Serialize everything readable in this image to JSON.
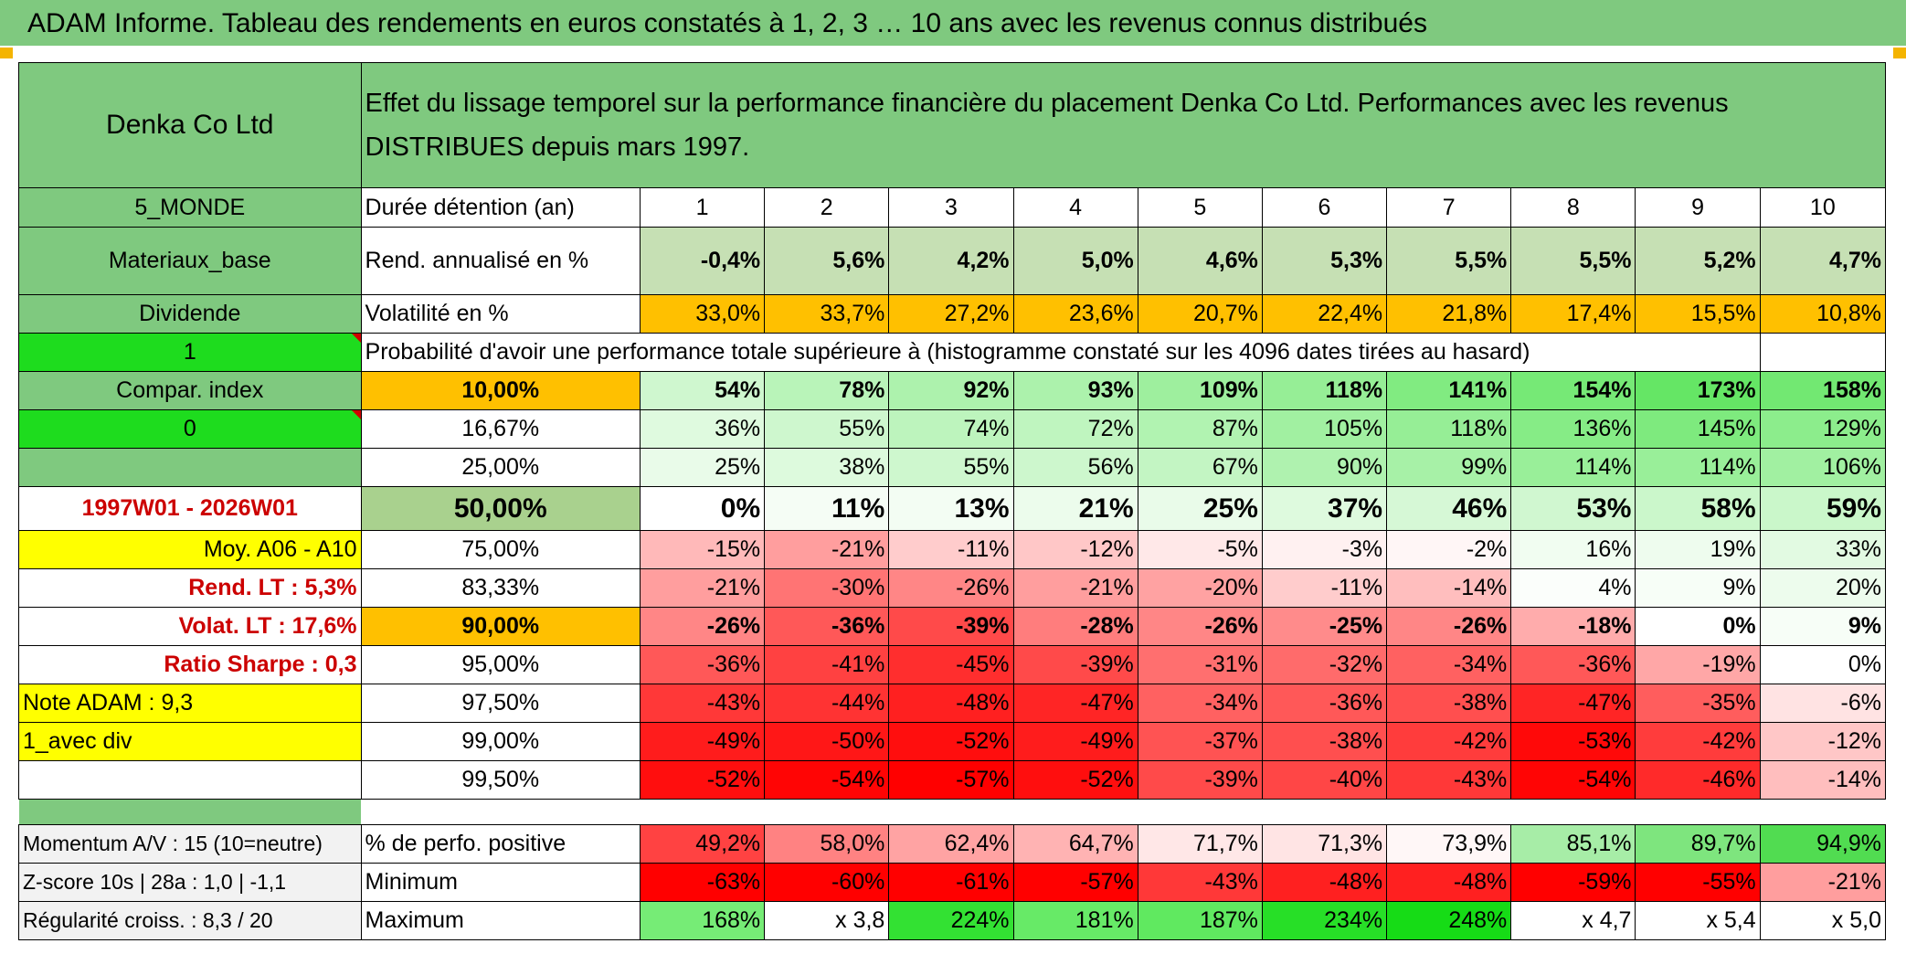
{
  "title": "ADAM Informe. Tableau des rendements en euros constatés à 1, 2, 3 … 10 ans avec les revenus connus distribués",
  "header": {
    "name": "Denka Co Ltd",
    "description": "Effet du lissage temporel sur la performance financière du placement Denka Co Ltd. Performances avec les revenus DISTRIBUES depuis mars 1997."
  },
  "side": {
    "region": "5_MONDE",
    "sector": "Materiaux_base",
    "income_type": "Dividende",
    "value1": "1",
    "compar_label": "Compar. index",
    "value0": "0",
    "period": "1997W01 - 2026W01",
    "moy": "Moy. A06 - A10",
    "rend_lt": "Rend. LT :   5,3%",
    "volat_lt": "Volat. LT :   17,6%",
    "sharpe": "Ratio Sharpe :    0,3",
    "note": "Note ADAM : 9,3",
    "avec_div": "1_avec div",
    "momentum": "Momentum A/V : 15 (10=neutre)",
    "zscore": "Z-score 10s | 28a : 1,0 | -1,1",
    "regularite": "Régularité croiss. : 8,3 / 20"
  },
  "duration_label": "Durée détention (an)",
  "durations": [
    "1",
    "2",
    "3",
    "4",
    "5",
    "6",
    "7",
    "8",
    "9",
    "10"
  ],
  "rend_label": "Rend. annualisé en %",
  "rend": [
    "-0,4%",
    "5,6%",
    "4,2%",
    "5,0%",
    "4,6%",
    "5,3%",
    "5,5%",
    "5,5%",
    "5,2%",
    "4,7%"
  ],
  "vol_label": "Volatilité en %",
  "vol": [
    "33,0%",
    "33,7%",
    "27,2%",
    "23,6%",
    "20,7%",
    "22,4%",
    "21,8%",
    "17,4%",
    "15,5%",
    "10,8%"
  ],
  "prob_label": "Probabilité d'avoir une performance totale supérieure à (histogramme constaté sur les 4096 dates tirées au hasard)",
  "quantiles": [
    {
      "p": "10,00%",
      "v": [
        "54%",
        "78%",
        "92%",
        "93%",
        "109%",
        "118%",
        "141%",
        "154%",
        "173%",
        "158%"
      ]
    },
    {
      "p": "16,67%",
      "v": [
        "36%",
        "55%",
        "74%",
        "72%",
        "87%",
        "105%",
        "118%",
        "136%",
        "145%",
        "129%"
      ]
    },
    {
      "p": "25,00%",
      "v": [
        "25%",
        "38%",
        "55%",
        "56%",
        "67%",
        "90%",
        "99%",
        "114%",
        "114%",
        "106%"
      ]
    },
    {
      "p": "50,00%",
      "v": [
        "0%",
        "11%",
        "13%",
        "21%",
        "25%",
        "37%",
        "46%",
        "53%",
        "58%",
        "59%"
      ]
    },
    {
      "p": "75,00%",
      "v": [
        "-15%",
        "-21%",
        "-11%",
        "-12%",
        "-5%",
        "-3%",
        "-2%",
        "16%",
        "19%",
        "33%"
      ]
    },
    {
      "p": "83,33%",
      "v": [
        "-21%",
        "-30%",
        "-26%",
        "-21%",
        "-20%",
        "-11%",
        "-14%",
        "4%",
        "9%",
        "20%"
      ]
    },
    {
      "p": "90,00%",
      "v": [
        "-26%",
        "-36%",
        "-39%",
        "-28%",
        "-26%",
        "-25%",
        "-26%",
        "-18%",
        "0%",
        "9%"
      ]
    },
    {
      "p": "95,00%",
      "v": [
        "-36%",
        "-41%",
        "-45%",
        "-39%",
        "-31%",
        "-32%",
        "-34%",
        "-36%",
        "-19%",
        "0%"
      ]
    },
    {
      "p": "97,50%",
      "v": [
        "-43%",
        "-44%",
        "-48%",
        "-47%",
        "-34%",
        "-36%",
        "-38%",
        "-47%",
        "-35%",
        "-6%"
      ]
    },
    {
      "p": "99,00%",
      "v": [
        "-49%",
        "-50%",
        "-52%",
        "-49%",
        "-37%",
        "-38%",
        "-42%",
        "-53%",
        "-42%",
        "-12%"
      ]
    },
    {
      "p": "99,50%",
      "v": [
        "-52%",
        "-54%",
        "-57%",
        "-52%",
        "-39%",
        "-40%",
        "-43%",
        "-54%",
        "-46%",
        "-14%"
      ]
    }
  ],
  "pos_label": "% de perfo. positive",
  "pos": [
    "49,2%",
    "58,0%",
    "62,4%",
    "64,7%",
    "71,7%",
    "71,3%",
    "73,9%",
    "85,1%",
    "89,7%",
    "94,9%"
  ],
  "min_label": "Minimum",
  "min": [
    "-63%",
    "-60%",
    "-61%",
    "-57%",
    "-43%",
    "-48%",
    "-48%",
    "-59%",
    "-55%",
    "-21%"
  ],
  "max_label": "Maximum",
  "max": [
    "168%",
    "x 3,8",
    "224%",
    "181%",
    "187%",
    "234%",
    "248%",
    "x 4,7",
    "x 5,4",
    "x 5,0"
  ],
  "colors": {
    "header_green": "#7fc97f",
    "bright_green": "#1edc1e",
    "yellow": "#ffff00",
    "orange": "#ffc000",
    "red_text": "#cc0000"
  }
}
